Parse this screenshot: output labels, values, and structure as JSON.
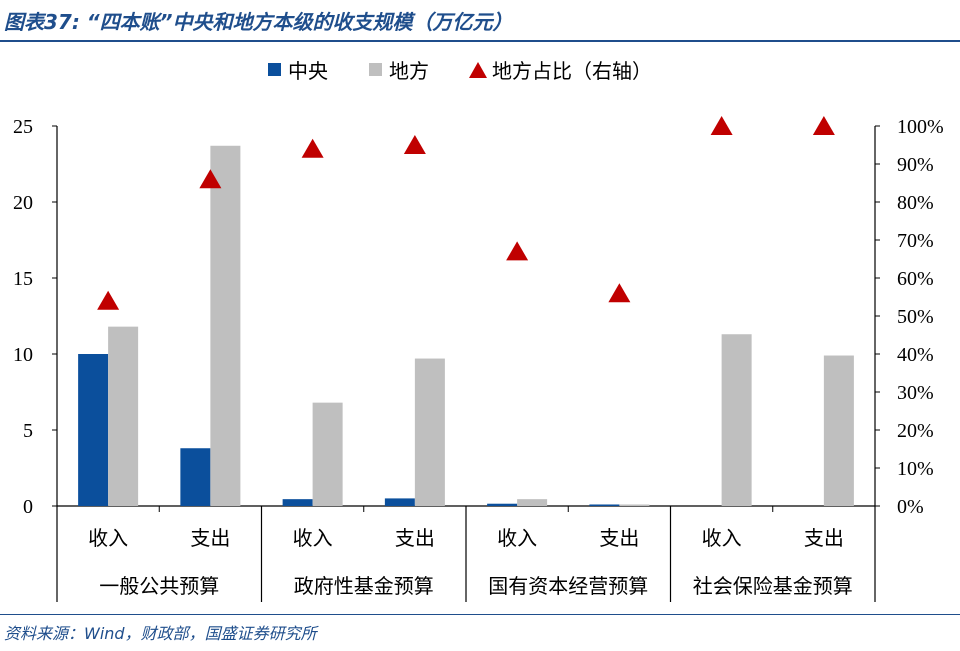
{
  "title": "图表37: “四本账”中央和地方本级的收支规模（万亿元）",
  "source": "资料来源：Wind，财政部，国盛证券研究所",
  "chart_data": {
    "type": "bar",
    "title": "“四本账”中央和地方本级的收支规模（万亿元）",
    "groups": [
      "一般公共预算",
      "政府性基金预算",
      "国有资本经营预算",
      "社会保险基金预算"
    ],
    "categories": [
      "收入",
      "支出",
      "收入",
      "支出",
      "收入",
      "支出",
      "收入",
      "支出"
    ],
    "series": [
      {
        "name": "中央",
        "type": "bar",
        "axis": "left",
        "color": "#0b4f9c",
        "values": [
          10.0,
          3.8,
          0.45,
          0.5,
          0.15,
          0.1,
          0.0,
          0.0
        ]
      },
      {
        "name": "地方",
        "type": "bar",
        "axis": "left",
        "color": "#bfbfbf",
        "values": [
          11.8,
          23.7,
          6.8,
          9.7,
          0.45,
          0.1,
          11.3,
          9.9
        ]
      },
      {
        "name": "地方占比（右轴）",
        "type": "scatter",
        "axis": "right",
        "marker": "triangle",
        "color": "#c00000",
        "values": [
          0.54,
          0.86,
          0.94,
          0.95,
          0.67,
          0.56,
          1.0,
          1.0
        ]
      }
    ],
    "y_left": {
      "min": 0,
      "max": 25,
      "ticks": [
        0,
        5,
        10,
        15,
        20,
        25
      ]
    },
    "y_right": {
      "min": 0,
      "max": 1,
      "ticks": [
        "0%",
        "10%",
        "20%",
        "30%",
        "40%",
        "50%",
        "60%",
        "70%",
        "80%",
        "90%",
        "100%"
      ]
    },
    "legend_position": "top",
    "grid": false
  }
}
